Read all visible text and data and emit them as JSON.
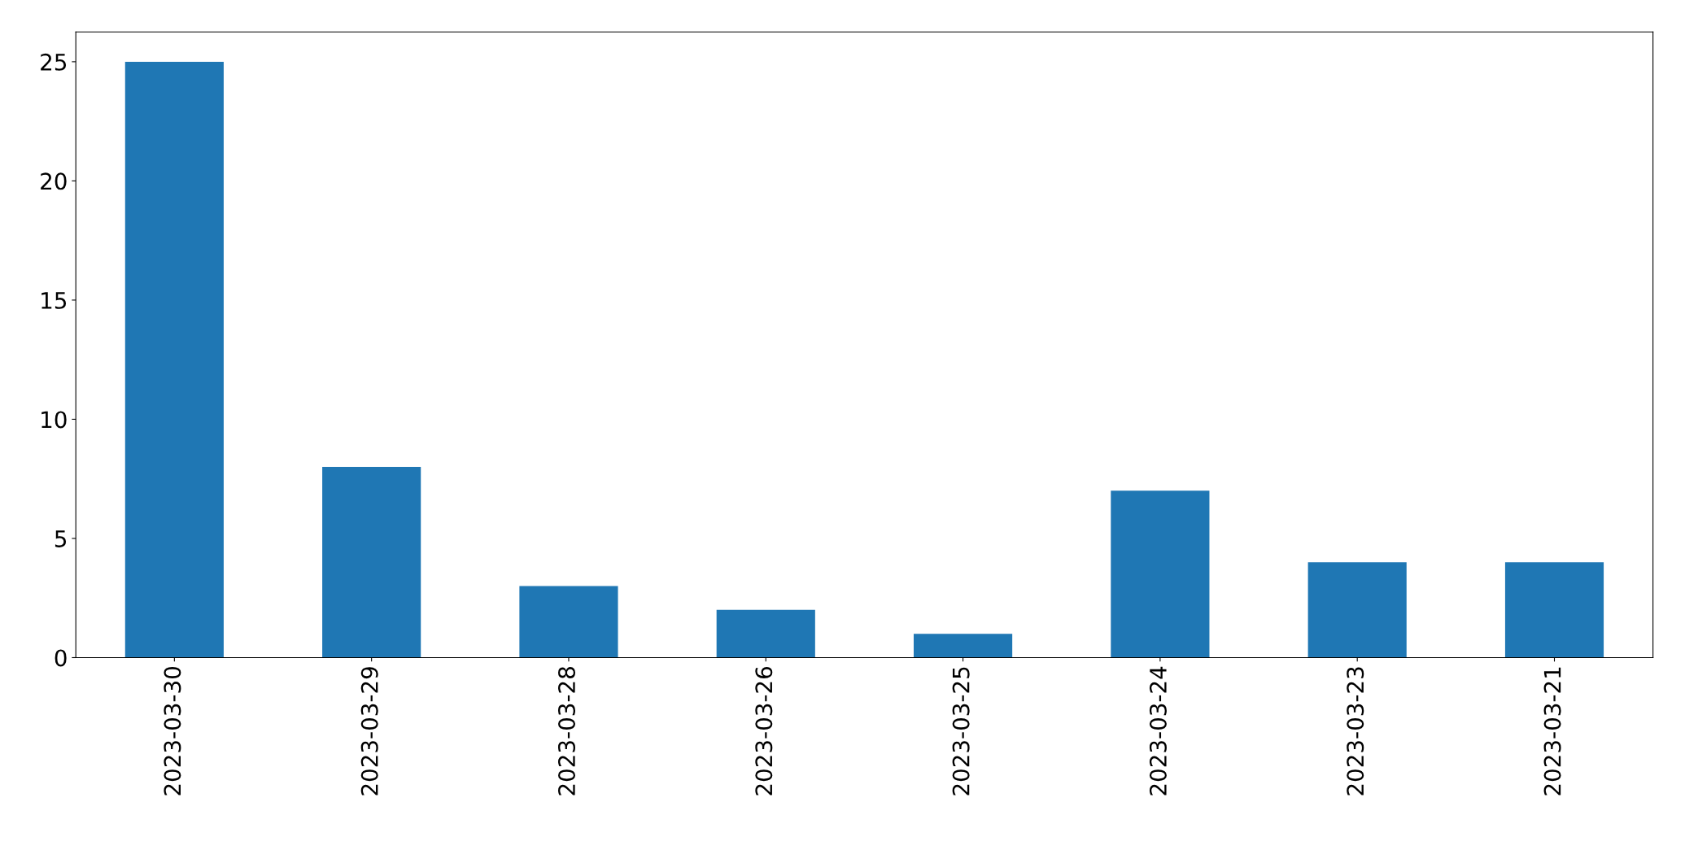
{
  "chart_data": {
    "type": "bar",
    "categories": [
      "2023-03-30",
      "2023-03-29",
      "2023-03-28",
      "2023-03-26",
      "2023-03-25",
      "2023-03-24",
      "2023-03-23",
      "2023-03-21"
    ],
    "values": [
      25,
      8,
      3,
      2,
      1,
      7,
      4,
      4
    ],
    "color": "#1f77b4",
    "ylim": [
      0,
      26.25
    ],
    "yticks": [
      0,
      5,
      10,
      15,
      20,
      25
    ],
    "grid": false
  }
}
